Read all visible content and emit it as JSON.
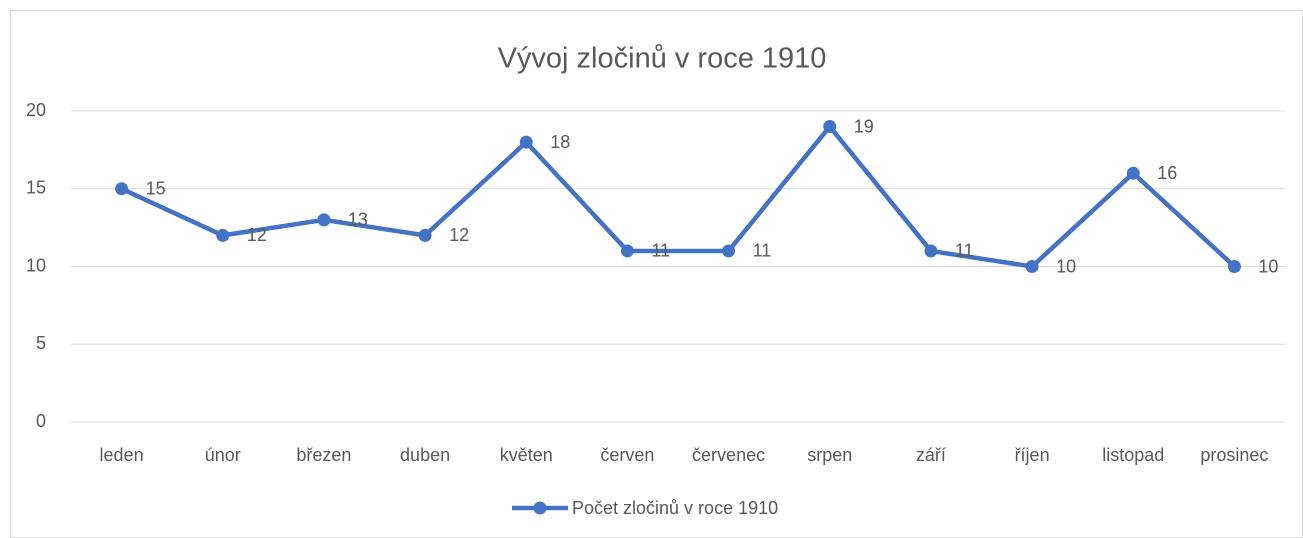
{
  "chart_data": {
    "type": "line",
    "title": "Vývoj zločinů v roce 1910",
    "categories": [
      "leden",
      "únor",
      "březen",
      "duben",
      "květen",
      "červen",
      "červenec",
      "srpen",
      "září",
      "říjen",
      "listopad",
      "prosinec"
    ],
    "series": [
      {
        "name": "Počet zločinů v roce 1910",
        "color": "#4472c4",
        "values": [
          15,
          12,
          13,
          12,
          18,
          11,
          11,
          19,
          11,
          10,
          16,
          10
        ]
      }
    ],
    "ylim": [
      0,
      20
    ],
    "yticks": [
      0,
      5,
      10,
      15,
      20
    ],
    "grid": true,
    "legend": "bottom"
  }
}
